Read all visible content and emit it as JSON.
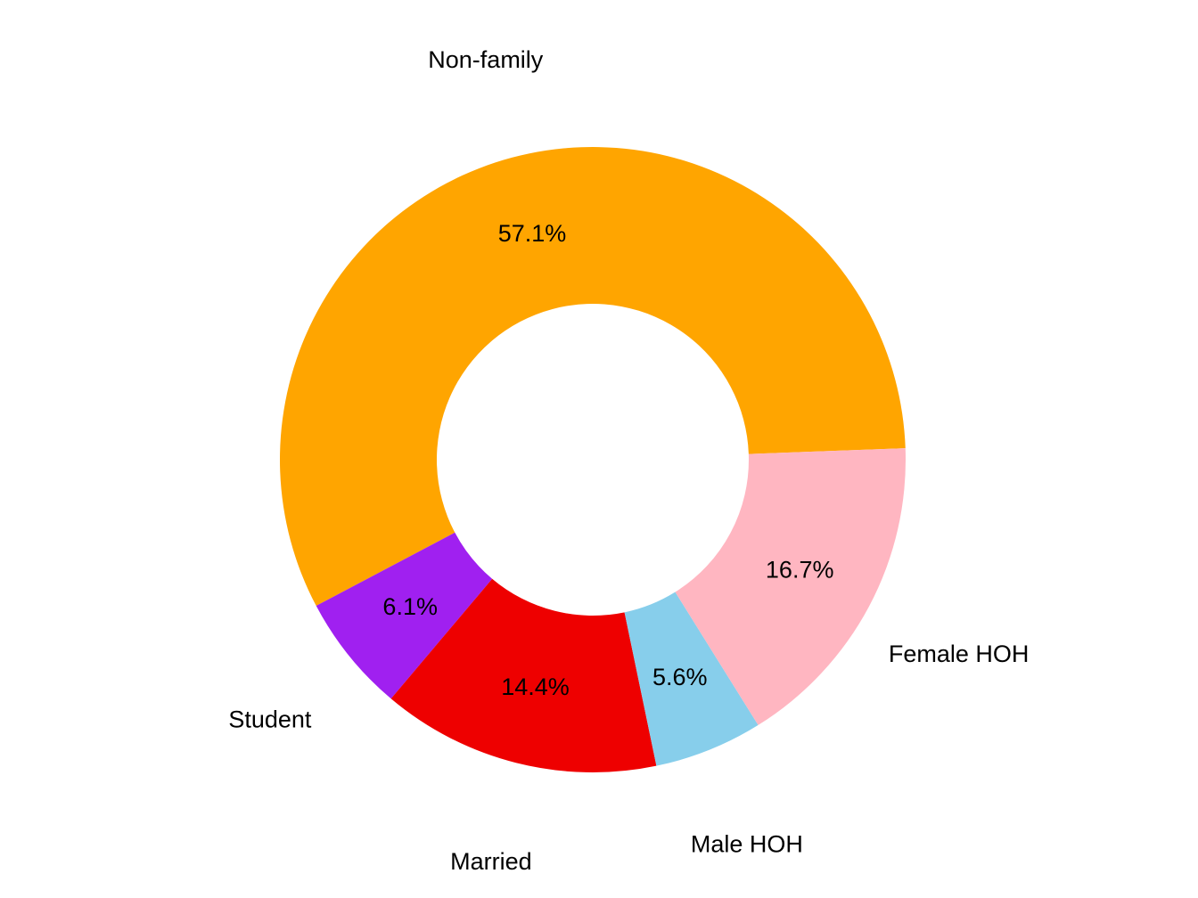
{
  "chart_data": {
    "type": "pie",
    "style": "donut",
    "title": "",
    "slices": [
      {
        "label": "Non-family",
        "value": 57.1,
        "value_label": "57.1%",
        "color": "#FFA500"
      },
      {
        "label": "Student",
        "value": 6.1,
        "value_label": "6.1%",
        "color": "#A020F0"
      },
      {
        "label": "Married",
        "value": 14.4,
        "value_label": "14.4%",
        "color": "#EE0000"
      },
      {
        "label": "Male HOH",
        "value": 5.6,
        "value_label": "5.6%",
        "color": "#87CEEB"
      },
      {
        "label": "Female HOH",
        "value": 16.7,
        "value_label": "16.7%",
        "color": "#FFB6C1"
      }
    ],
    "direction": "clockwise",
    "legend": "none",
    "grid": false
  }
}
